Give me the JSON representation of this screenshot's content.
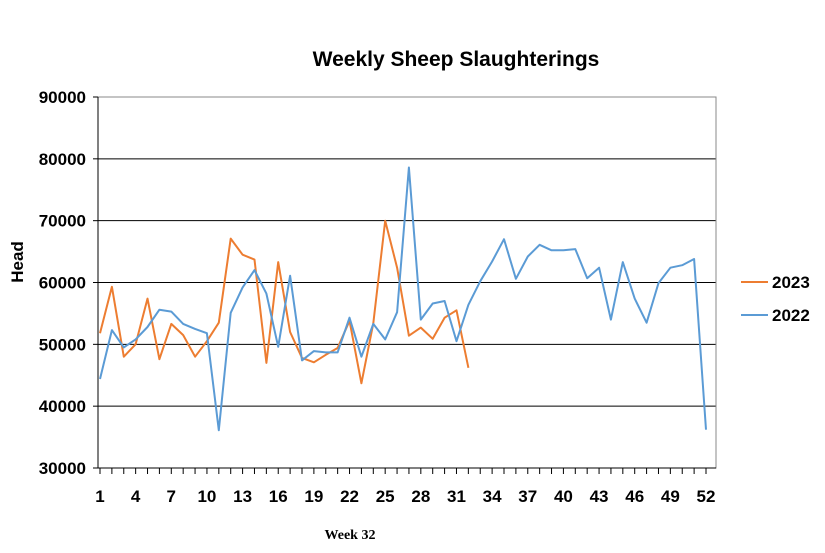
{
  "chart_data": {
    "type": "line",
    "title": "Weekly Sheep Slaughterings",
    "xlabel": "",
    "ylabel": "Head",
    "xlim": [
      1,
      52
    ],
    "ylim": [
      30000,
      90000
    ],
    "yticks": [
      30000,
      40000,
      50000,
      60000,
      70000,
      80000,
      90000
    ],
    "xticks": [
      1,
      4,
      7,
      10,
      13,
      16,
      19,
      22,
      25,
      28,
      31,
      34,
      37,
      40,
      43,
      46,
      49,
      52
    ],
    "grid": "horizontal",
    "legend": "right",
    "series": [
      {
        "name": "2023",
        "color": "#ED7D31",
        "x": [
          1,
          2,
          3,
          4,
          5,
          6,
          7,
          8,
          9,
          10,
          11,
          12,
          13,
          14,
          15,
          16,
          17,
          18,
          19,
          20,
          21,
          22,
          23,
          24,
          25,
          26,
          27,
          28,
          29,
          30,
          31,
          32
        ],
        "values": [
          51800,
          59300,
          48000,
          50000,
          57400,
          47600,
          53300,
          51500,
          48000,
          50500,
          53500,
          67100,
          64500,
          63700,
          47000,
          63300,
          52000,
          47800,
          47100,
          48300,
          49400,
          53800,
          43700,
          53400,
          70000,
          62400,
          51400,
          52700,
          50900,
          54300,
          55500,
          46200
        ]
      },
      {
        "name": "2022",
        "color": "#5B9BD5",
        "x": [
          1,
          2,
          3,
          4,
          5,
          6,
          7,
          8,
          9,
          10,
          11,
          12,
          13,
          14,
          15,
          16,
          17,
          18,
          19,
          20,
          21,
          22,
          23,
          24,
          25,
          26,
          27,
          28,
          29,
          30,
          31,
          32,
          33,
          34,
          35,
          36,
          37,
          38,
          39,
          40,
          41,
          42,
          43,
          44,
          45,
          46,
          47,
          48,
          49,
          50,
          51,
          52
        ],
        "values": [
          44400,
          52300,
          49500,
          50800,
          52800,
          55600,
          55300,
          53300,
          52500,
          51800,
          36100,
          55100,
          59200,
          62000,
          58200,
          49600,
          61100,
          47400,
          48900,
          48700,
          48700,
          54300,
          48000,
          53300,
          50800,
          55200,
          78600,
          54000,
          56600,
          57000,
          50500,
          56400,
          60200,
          63400,
          67000,
          60600,
          64200,
          66100,
          65200,
          65200,
          65400,
          60700,
          62400,
          54000,
          63300,
          57400,
          53500,
          59900,
          62400,
          62800,
          63800,
          36200
        ]
      }
    ]
  },
  "footnote": "Week 32"
}
